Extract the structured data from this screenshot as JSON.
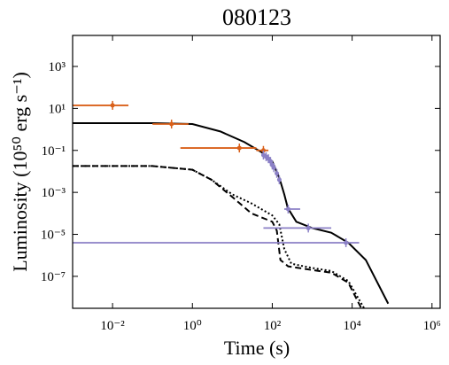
{
  "chart_data": {
    "type": "line",
    "title": "080123",
    "x_label": "Time (s)",
    "y_label": "Luminosity (10⁵⁰ erg s⁻¹)",
    "x_scale": "log",
    "y_scale": "log",
    "xlim": [
      0.001,
      1600000
    ],
    "ylim": [
      3e-09,
      30000
    ],
    "xticks": [
      {
        "value": 0.01,
        "label": "10⁻²"
      },
      {
        "value": 1,
        "label": "10⁰"
      },
      {
        "value": 100,
        "label": "10²"
      },
      {
        "value": 10000,
        "label": "10⁴"
      },
      {
        "value": 1000000,
        "label": "10⁶"
      }
    ],
    "yticks": [
      {
        "value": 1e-07,
        "label": "10⁻⁷"
      },
      {
        "value": 1e-05,
        "label": "10⁻⁵"
      },
      {
        "value": 0.001,
        "label": "10⁻³"
      },
      {
        "value": 0.1,
        "label": "10⁻¹"
      },
      {
        "value": 10,
        "label": "10¹"
      },
      {
        "value": 1000,
        "label": "10³"
      }
    ],
    "lines": [
      {
        "color": "#000000",
        "dash": "solid",
        "x": [
          0.001,
          0.1,
          1,
          5,
          20,
          55,
          100,
          150,
          200,
          245,
          400,
          1000,
          3000,
          8000,
          22000,
          80000
        ],
        "y": [
          2,
          2,
          1.8,
          0.8,
          0.25,
          0.08,
          0.03,
          0.005,
          0.0008,
          0.00018,
          4e-05,
          2e-05,
          1.2e-05,
          4e-06,
          6e-07,
          5e-09
        ]
      },
      {
        "color": "#000000",
        "dash": "dashed",
        "x": [
          0.001,
          0.1,
          1,
          3,
          10,
          30,
          100,
          130,
          160,
          250,
          1000,
          3000,
          8000,
          17000
        ],
        "y": [
          0.018,
          0.018,
          0.012,
          0.004,
          0.0006,
          0.0001,
          4e-05,
          1.5e-05,
          6e-07,
          3e-07,
          2e-07,
          1.5e-07,
          5e-08,
          3e-09
        ]
      },
      {
        "color": "#000000",
        "dash": "dotted",
        "x": [
          0.001,
          0.1,
          1,
          3,
          10,
          30,
          100,
          150,
          200,
          300,
          1000,
          3000,
          8000,
          20000
        ],
        "y": [
          0.018,
          0.018,
          0.012,
          0.004,
          0.0008,
          0.0003,
          8e-05,
          3e-05,
          2e-06,
          4e-07,
          2.5e-07,
          1.8e-07,
          6e-08,
          3e-09
        ]
      }
    ],
    "points": [
      {
        "color": "#d9601a",
        "x": [
          0.01,
          0.3,
          15,
          60
        ],
        "y": [
          14,
          1.8,
          0.13,
          0.1
        ],
        "x_min": [
          0.001,
          0.1,
          0.5,
          40
        ],
        "x_max": [
          0.025,
          0.8,
          40,
          80
        ]
      },
      {
        "color": "#8b80c6",
        "x": [
          60,
          70,
          80,
          90,
          100,
          110,
          130,
          150,
          250,
          800,
          7000
        ],
        "y": [
          0.06,
          0.05,
          0.04,
          0.03,
          0.02,
          0.015,
          0.008,
          0.004,
          0.00016,
          2e-05,
          4e-06
        ],
        "x_min": [
          55,
          64,
          73,
          82,
          91,
          100,
          118,
          136,
          200,
          60,
          0.001
        ],
        "x_max": [
          66,
          77,
          88,
          99,
          110,
          121,
          143,
          165,
          500,
          3000,
          15000
        ]
      }
    ]
  }
}
